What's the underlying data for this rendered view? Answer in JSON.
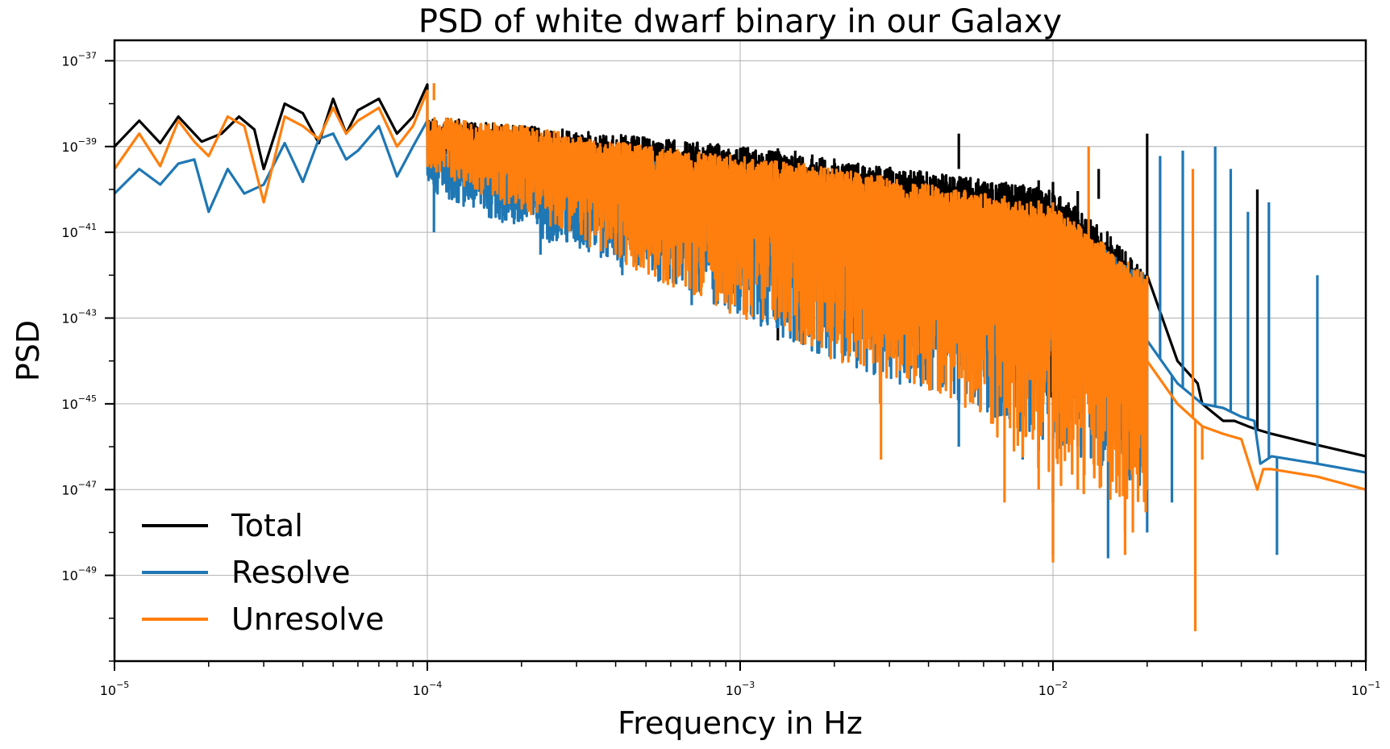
{
  "chart_data": {
    "type": "line",
    "title": "PSD of white dwarf binary in our Galaxy",
    "xlabel": "Frequency in Hz",
    "ylabel": "PSD",
    "xscale": "log",
    "yscale": "log",
    "xlim": [
      1e-05,
      0.1
    ],
    "ylim": [
      1e-51,
      3e-37
    ],
    "grid": true,
    "legend_loc": "lower-left",
    "x_ticks": [
      {
        "value": 1e-05,
        "base": "10",
        "exp": "−5"
      },
      {
        "value": 0.0001,
        "base": "10",
        "exp": "−4"
      },
      {
        "value": 0.001,
        "base": "10",
        "exp": "−3"
      },
      {
        "value": 0.01,
        "base": "10",
        "exp": "−2"
      },
      {
        "value": 0.1,
        "base": "10",
        "exp": "−1"
      }
    ],
    "y_ticks": [
      {
        "value": 1e-37,
        "base": "10",
        "exp": "−37"
      },
      {
        "value": 1e-39,
        "base": "10",
        "exp": "−39"
      },
      {
        "value": 1e-41,
        "base": "10",
        "exp": "−41"
      },
      {
        "value": 1e-43,
        "base": "10",
        "exp": "−43"
      },
      {
        "value": 1e-45,
        "base": "10",
        "exp": "−45"
      },
      {
        "value": 1e-47,
        "base": "10",
        "exp": "−47"
      },
      {
        "value": 1e-49,
        "base": "10",
        "exp": "−49"
      }
    ],
    "series": [
      {
        "name": "Total",
        "color": "#000000",
        "points": [
          [
            1e-05,
            1e-39
          ],
          [
            1.2e-05,
            4e-39
          ],
          [
            1.4e-05,
            1.2e-39
          ],
          [
            1.6e-05,
            5e-39
          ],
          [
            1.9e-05,
            1.3e-39
          ],
          [
            2.2e-05,
            2e-39
          ],
          [
            2.5e-05,
            5e-39
          ],
          [
            2.8e-05,
            2.5e-39
          ],
          [
            3e-05,
            3e-40
          ],
          [
            3.5e-05,
            1e-38
          ],
          [
            4e-05,
            6e-39
          ],
          [
            4.5e-05,
            1.2e-39
          ],
          [
            5e-05,
            1.3e-38
          ],
          [
            5.5e-05,
            2e-39
          ],
          [
            6e-05,
            7e-39
          ],
          [
            7e-05,
            1.3e-38
          ],
          [
            8e-05,
            2e-39
          ],
          [
            9e-05,
            5e-39
          ],
          [
            0.0001,
            2.8e-38
          ],
          [
            0.00012,
            4e-39
          ],
          [
            0.00015,
            1e-38
          ],
          [
            0.0002,
            4e-39
          ],
          [
            0.00025,
            5e-39
          ],
          [
            0.0003,
            3e-39
          ],
          [
            0.0004,
            2e-39
          ],
          [
            0.0005,
            2e-39
          ],
          [
            0.0007,
            2e-39
          ],
          [
            0.001,
            1.2e-39
          ],
          [
            0.0015,
            8e-40
          ],
          [
            0.002,
            5e-40
          ],
          [
            0.003,
            4e-40
          ],
          [
            0.005,
            3e-40
          ],
          [
            0.007,
            2e-40
          ],
          [
            0.01,
            1.5e-40
          ],
          [
            0.015,
            5e-41
          ],
          [
            0.02,
            1e-42
          ],
          [
            0.025,
            1e-44
          ],
          [
            0.029,
            3e-45
          ],
          [
            0.03,
            1e-45
          ],
          [
            0.035,
            4e-46
          ],
          [
            0.038,
            4e-46
          ],
          [
            0.042,
            3e-46
          ],
          [
            0.045,
            2.5e-46
          ],
          [
            0.05,
            2e-46
          ],
          [
            0.07,
            1.1e-46
          ],
          [
            0.1,
            6e-47
          ]
        ],
        "noise_band": [
          [
            0.0001,
            5e-39,
            6e-40
          ],
          [
            0.001,
            1e-39,
            1e-41
          ],
          [
            0.002,
            5e-40,
            1e-42
          ],
          [
            0.005,
            2e-40,
            3e-44
          ],
          [
            0.01,
            1e-40,
            1e-45
          ],
          [
            0.015,
            1e-41,
            1e-46
          ],
          [
            0.02,
            1e-42,
            3e-47
          ]
        ],
        "spikes": [
          [
            0.00132,
            3e-44
          ],
          [
            0.0015,
            2e-43
          ],
          [
            0.0017,
            1e-43
          ],
          [
            0.005,
            2e-39
          ],
          [
            0.007,
            2e-40
          ],
          [
            0.009,
            8e-47
          ],
          [
            0.01,
            5e-48
          ],
          [
            0.012,
            1e-46
          ],
          [
            0.014,
            3e-40
          ],
          [
            0.02,
            2e-39
          ],
          [
            0.045,
            1e-40
          ]
        ]
      },
      {
        "name": "Resolve",
        "color": "#1f77b4",
        "points": [
          [
            1e-05,
            8e-41
          ],
          [
            1.2e-05,
            3e-40
          ],
          [
            1.4e-05,
            1.3e-40
          ],
          [
            1.6e-05,
            4e-40
          ],
          [
            1.8e-05,
            5e-40
          ],
          [
            2e-05,
            3e-41
          ],
          [
            2.3e-05,
            3e-40
          ],
          [
            2.6e-05,
            8e-41
          ],
          [
            3e-05,
            1.3e-40
          ],
          [
            3.5e-05,
            1.2e-39
          ],
          [
            4e-05,
            1.5e-40
          ],
          [
            4.5e-05,
            1.5e-39
          ],
          [
            5e-05,
            2e-39
          ],
          [
            5.5e-05,
            5e-40
          ],
          [
            6e-05,
            8e-40
          ],
          [
            7e-05,
            3e-39
          ],
          [
            8e-05,
            2e-40
          ],
          [
            9e-05,
            1e-39
          ],
          [
            0.0001,
            4e-39
          ],
          [
            0.00012,
            2e-40
          ],
          [
            0.00015,
            1e-39
          ],
          [
            0.0002,
            1e-40
          ],
          [
            0.0003,
            5e-40
          ],
          [
            0.0005,
            5e-40
          ],
          [
            0.001,
            1e-40
          ],
          [
            0.002,
            5e-41
          ],
          [
            0.005,
            3e-41
          ],
          [
            0.01,
            1e-41
          ],
          [
            0.015,
            3e-43
          ],
          [
            0.02,
            3e-44
          ],
          [
            0.025,
            3e-45
          ],
          [
            0.03,
            1e-45
          ],
          [
            0.035,
            8e-46
          ],
          [
            0.04,
            5e-46
          ],
          [
            0.044,
            4e-46
          ],
          [
            0.046,
            4e-47
          ],
          [
            0.05,
            6e-47
          ],
          [
            0.07,
            4e-47
          ],
          [
            0.1,
            2.5e-47
          ]
        ],
        "noise_band": [
          [
            0.0001,
            1e-39,
            1e-40
          ],
          [
            0.0002,
            8e-40,
            1e-41
          ],
          [
            0.0005,
            5e-40,
            1e-42
          ],
          [
            0.001,
            2e-40,
            1e-43
          ],
          [
            0.002,
            1e-40,
            1e-44
          ],
          [
            0.005,
            5e-41,
            1e-45
          ],
          [
            0.01,
            2e-41,
            1e-46
          ],
          [
            0.02,
            1e-42,
            1e-47
          ]
        ],
        "spikes": [
          [
            0.000105,
            1e-41
          ],
          [
            0.00019,
            2e-41
          ],
          [
            0.00023,
            3e-42
          ],
          [
            0.00042,
            1e-42
          ],
          [
            0.0006,
            5e-42
          ],
          [
            0.0007,
            2e-43
          ],
          [
            0.0013,
            5e-43
          ],
          [
            0.005,
            1e-46
          ],
          [
            0.008,
            5e-47
          ],
          [
            0.01,
            3e-49
          ],
          [
            0.015,
            2.5e-49
          ],
          [
            0.017,
            1e-48
          ],
          [
            0.02,
            1e-48
          ],
          [
            0.022,
            6e-40
          ],
          [
            0.024,
            5e-48
          ],
          [
            0.026,
            8e-40
          ],
          [
            0.033,
            1e-39
          ],
          [
            0.037,
            3e-40
          ],
          [
            0.042,
            3e-41
          ],
          [
            0.049,
            5e-41
          ],
          [
            0.052,
            3e-49
          ],
          [
            0.07,
            1e-42
          ]
        ]
      },
      {
        "name": "Unresolve",
        "color": "#ff7f0e",
        "points": [
          [
            1e-05,
            3e-40
          ],
          [
            1.2e-05,
            2e-39
          ],
          [
            1.4e-05,
            3.5e-40
          ],
          [
            1.6e-05,
            4e-39
          ],
          [
            1.8e-05,
            1.3e-39
          ],
          [
            2e-05,
            6e-40
          ],
          [
            2.3e-05,
            5e-39
          ],
          [
            2.6e-05,
            3e-39
          ],
          [
            3e-05,
            5e-41
          ],
          [
            3.5e-05,
            5e-39
          ],
          [
            4e-05,
            3e-39
          ],
          [
            4.5e-05,
            1.5e-39
          ],
          [
            5e-05,
            8e-39
          ],
          [
            5.5e-05,
            2e-39
          ],
          [
            6e-05,
            4e-39
          ],
          [
            7e-05,
            8e-39
          ],
          [
            8e-05,
            1e-39
          ],
          [
            9e-05,
            3e-39
          ],
          [
            0.0001,
            2e-38
          ],
          [
            0.00012,
            3e-39
          ],
          [
            0.00015,
            8e-39
          ],
          [
            0.0002,
            4e-39
          ],
          [
            0.0003,
            3e-39
          ],
          [
            0.0005,
            2e-39
          ],
          [
            0.0007,
            1e-39
          ],
          [
            0.001,
            8e-40
          ],
          [
            0.002,
            3e-40
          ],
          [
            0.003,
            2e-40
          ],
          [
            0.005,
            1e-40
          ],
          [
            0.01,
            5e-41
          ],
          [
            0.015,
            1e-42
          ],
          [
            0.02,
            1e-44
          ],
          [
            0.025,
            1e-45
          ],
          [
            0.03,
            3e-46
          ],
          [
            0.035,
            2e-46
          ],
          [
            0.04,
            1.5e-46
          ],
          [
            0.045,
            1e-47
          ],
          [
            0.047,
            3e-47
          ],
          [
            0.05,
            3e-47
          ],
          [
            0.07,
            2e-47
          ],
          [
            0.1,
            1e-47
          ]
        ],
        "noise_band": [
          [
            0.0001,
            5e-39,
            3e-40
          ],
          [
            0.0002,
            3e-39,
            3e-41
          ],
          [
            0.0005,
            1e-39,
            1e-42
          ],
          [
            0.001,
            6e-40,
            1e-43
          ],
          [
            0.002,
            3e-40,
            1e-44
          ],
          [
            0.005,
            1e-40,
            1e-45
          ],
          [
            0.01,
            4e-41,
            1e-47
          ],
          [
            0.02,
            1e-42,
            3e-48
          ]
        ],
        "spikes": [
          [
            0.000105,
            3e-38
          ],
          [
            0.0016,
            5e-44
          ],
          [
            0.0028,
            1e-45
          ],
          [
            0.00282,
            5e-47
          ],
          [
            0.007,
            5e-48
          ],
          [
            0.009,
            1e-47
          ],
          [
            0.01,
            2e-49
          ],
          [
            0.012,
            1e-47
          ],
          [
            0.013,
            1e-39
          ],
          [
            0.017,
            3e-49
          ],
          [
            0.018,
            1e-48
          ],
          [
            0.028,
            3e-40
          ],
          [
            0.0285,
            5e-51
          ],
          [
            0.03,
            5e-47
          ]
        ]
      }
    ]
  }
}
